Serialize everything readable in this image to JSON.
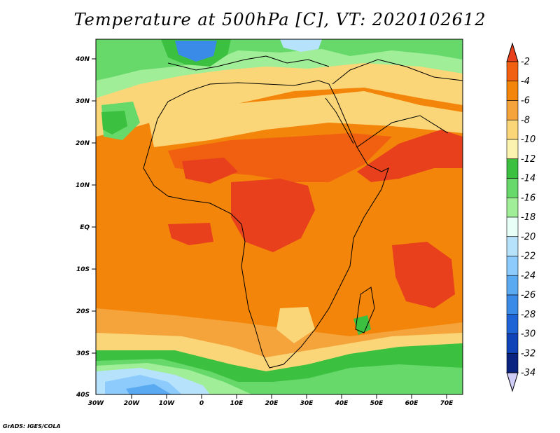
{
  "title": "Temperature at 500hPa [C], VT: 2020102612",
  "credit": "GrADS: IGES/COLA",
  "axes": {
    "lat_labels": [
      "40N",
      "30N",
      "20N",
      "10N",
      "EQ",
      "10S",
      "20S",
      "30S",
      "40S"
    ],
    "lon_labels": [
      "30W",
      "20W",
      "10W",
      "0",
      "10E",
      "20E",
      "30E",
      "40E",
      "50E",
      "60E",
      "70E"
    ]
  },
  "colorbar": {
    "labels": [
      "-2",
      "-4",
      "-6",
      "-8",
      "-10",
      "-12",
      "-14",
      "-16",
      "-18",
      "-20",
      "-22",
      "-24",
      "-26",
      "-28",
      "-30",
      "-32",
      "-34"
    ],
    "colors": [
      "#e8401c",
      "#f06010",
      "#f3850a",
      "#f5a43c",
      "#fbd678",
      "#fdf3b0",
      "#3cc040",
      "#66d96a",
      "#a0ee98",
      "#e8fff8",
      "#b6e2fc",
      "#8ccbfb",
      "#5aaaf2",
      "#3a8ae8",
      "#1f64d6",
      "#1042b8",
      "#0a2280",
      "#cfcdf8"
    ]
  },
  "colors": {
    "hot": "#e8401c",
    "warm": "#f3850a",
    "mild": "#fbd678",
    "green": "#3cc040",
    "cold": "#3a8ae8"
  }
}
